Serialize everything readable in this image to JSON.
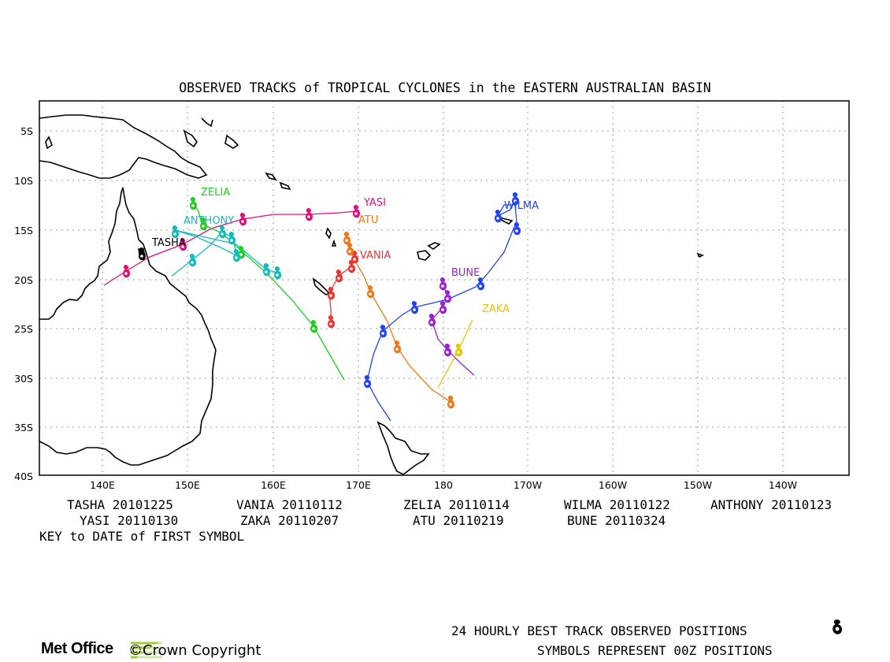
{
  "title": "OBSERVED TRACKS of TROPICAL CYCLONES in the EASTERN AUSTRALIAN BASIN",
  "axes": {
    "lat_labels": [
      "5S",
      "10S",
      "15S",
      "20S",
      "25S",
      "30S",
      "35S",
      "40S"
    ],
    "lon_labels": [
      "140E",
      "150E",
      "160E",
      "170E",
      "180",
      "170W",
      "160W",
      "150W",
      "140W"
    ]
  },
  "storms": [
    {
      "name": "TASHA",
      "first_date": "20101225",
      "color": "#000000"
    },
    {
      "name": "VANIA",
      "first_date": "20110112",
      "color": "#ee3333"
    },
    {
      "name": "ZELIA",
      "first_date": "20110114",
      "color": "#22cc22"
    },
    {
      "name": "WILMA",
      "first_date": "20110122",
      "color": "#2244ee"
    },
    {
      "name": "ANTHONY",
      "first_date": "20110123",
      "color": "#11bbbb"
    },
    {
      "name": "YASI",
      "first_date": "20110130",
      "color": "#e0107a"
    },
    {
      "name": "ZAKA",
      "first_date": "20110207",
      "color": "#e8c400"
    },
    {
      "name": "ATU",
      "first_date": "20110219",
      "color": "#e87a1a"
    },
    {
      "name": "BUNE",
      "first_date": "20110324",
      "color": "#9922cc"
    }
  ],
  "key_rows": [
    [
      "TASHA 20101225",
      "VANIA 20110112",
      "ZELIA 20110114",
      "WILMA 20110122",
      "ANTHONY 20110123"
    ],
    [
      "YASI 20110130",
      "ZAKA 20110207",
      "ATU 20110219",
      "BUNE 20110324"
    ]
  ],
  "key_caption": "KEY to DATE of FIRST SYMBOL",
  "footer": {
    "line1": "24 HOURLY BEST TRACK OBSERVED POSITIONS",
    "line2": "SYMBOLS REPRESENT 00Z POSITIONS",
    "logo": "Met Office",
    "copyright": "©Crown Copyright"
  }
}
